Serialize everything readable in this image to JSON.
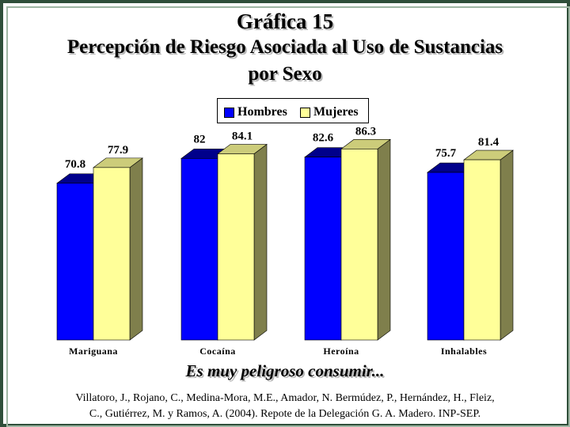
{
  "title": {
    "line1": "Gráfica 15",
    "line2": "Percepción de Riesgo Asociada al Uso de Sustancias",
    "line3": "por Sexo"
  },
  "legend": {
    "hombres": "Hombres",
    "mujeres": "Mujeres"
  },
  "subtitle": "Es muy peligroso consumir...",
  "citation": {
    "line1": "Villatoro, J., Rojano, C., Medina-Mora, M.E., Amador, N. Bermúdez, P., Hernández, H., Fleiz,",
    "line2": "C., Gutiérrez, M. y Ramos, A. (2004). Repote de la Delegación G. A. Madero. INP-SEP."
  },
  "colors": {
    "hombres_front": "#0000ff",
    "hombres_side": "#00007f",
    "mujeres_front": "#ffff99",
    "mujeres_side": "#7f7f4c"
  },
  "chart_data": {
    "type": "bar",
    "categories": [
      "Mariguana",
      "Cocaína",
      "Heroína",
      "Inhalables"
    ],
    "series": [
      {
        "name": "Hombres",
        "values": [
          70.8,
          82,
          82.6,
          75.7
        ]
      },
      {
        "name": "Mujeres",
        "values": [
          77.9,
          84.1,
          86.3,
          81.4
        ]
      }
    ],
    "data_labels": [
      [
        "70.8",
        "77.9"
      ],
      [
        "82",
        "84.1"
      ],
      [
        "82.6",
        "86.3"
      ],
      [
        "75.7",
        "81.4"
      ]
    ],
    "ylim": [
      0,
      100
    ],
    "grid": false,
    "legend_position": "top-center",
    "three_d": true
  }
}
